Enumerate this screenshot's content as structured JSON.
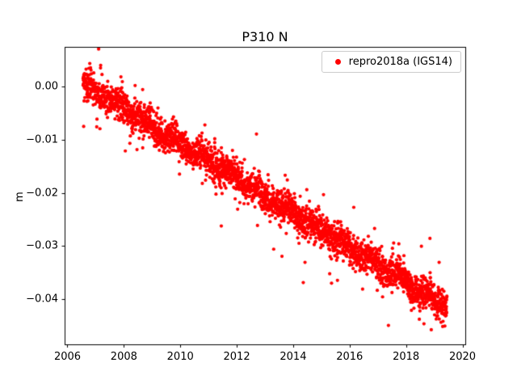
{
  "chart_data": {
    "type": "scatter",
    "title": "P310 N",
    "xlabel": "",
    "ylabel": "m",
    "xlim": [
      2005.9,
      2020.1
    ],
    "ylim": [
      -0.0485,
      0.0075
    ],
    "x_ticks": [
      2006,
      2008,
      2010,
      2012,
      2014,
      2016,
      2018,
      2020
    ],
    "x_tick_labels": [
      "2006",
      "2008",
      "2010",
      "2012",
      "2014",
      "2016",
      "2018",
      "2020"
    ],
    "y_ticks": [
      0.0,
      -0.01,
      -0.02,
      -0.03,
      -0.04
    ],
    "y_tick_labels": [
      "0.00",
      "−0.01",
      "−0.02",
      "−0.03",
      "−0.04"
    ],
    "grid": false,
    "legend_position": "upper right",
    "series": [
      {
        "name": "repro2018a (IGS14)",
        "color": "#ff0000",
        "marker": "dot",
        "n_points": 3000,
        "x_start": 2006.55,
        "x_end": 2019.45,
        "trend_y_start": 0.0005,
        "trend_y_end": -0.0415,
        "slope_m_per_yr": -0.00326,
        "noise_std_m": 0.0014,
        "outlier_fraction": 0.08,
        "outlier_scale": 2.8,
        "seasonal_amp_m": 0.0006,
        "annual_means": [
          [
            2007,
            -0.001
          ],
          [
            2008,
            -0.0047
          ],
          [
            2009,
            -0.008
          ],
          [
            2010,
            -0.0112
          ],
          [
            2011,
            -0.0145
          ],
          [
            2012,
            -0.0177
          ],
          [
            2013,
            -0.021
          ],
          [
            2014,
            -0.0243
          ],
          [
            2015,
            -0.0275
          ],
          [
            2016,
            -0.0308
          ],
          [
            2017,
            -0.034
          ],
          [
            2018,
            -0.0373
          ],
          [
            2019,
            -0.0405
          ]
        ]
      }
    ]
  }
}
